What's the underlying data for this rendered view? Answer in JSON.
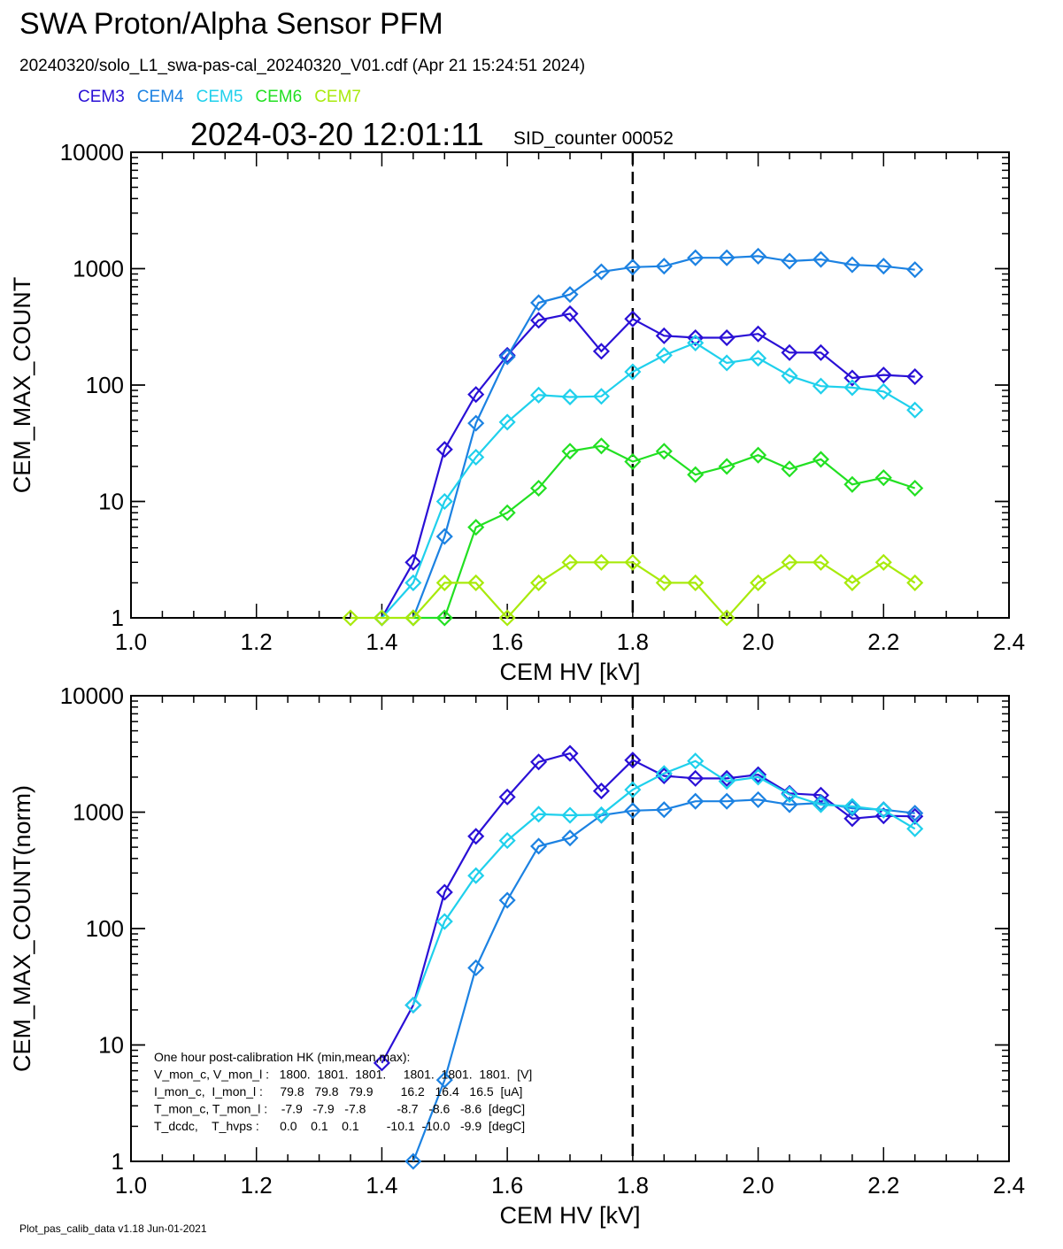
{
  "title": "SWA Proton/Alpha Sensor PFM",
  "subtitle": "20240320/solo_L1_swa-pas-cal_20240320_V01.cdf  (Apr 21 15:24:51 2024)",
  "timestamp": "2024-03-20 12:01:11",
  "sid_counter": "SID_counter 00052",
  "footer": "Plot_pas_calib_data v1.18 Jun-01-2021",
  "legend": [
    {
      "name": "CEM3",
      "color": "#2a10d6"
    },
    {
      "name": "CEM4",
      "color": "#1c82e2"
    },
    {
      "name": "CEM5",
      "color": "#1fd0ec"
    },
    {
      "name": "CEM6",
      "color": "#22e022"
    },
    {
      "name": "CEM7",
      "color": "#a8ea0c"
    }
  ],
  "hk_notes": [
    "One hour post-calibration HK (min,mean,max):",
    "V_mon_c, V_mon_l :   1800.  1801.  1801.     1801.  1801.  1801.  [V]",
    "I_mon_c,  I_mon_l :     79.8   79.8   79.9        16.2   16.4   16.5  [uA]",
    "T_mon_c, T_mon_l :    -7.9   -7.9   -7.8         -8.7   -8.6   -8.6  [degC]",
    "T_dcdc,    T_hvps :      0.0    0.1    0.1        -10.1  -10.0   -9.9  [degC]"
  ],
  "chart_data": [
    {
      "type": "line",
      "xlabel": "CEM HV [kV]",
      "ylabel": "CEM_MAX_COUNT",
      "xlim": [
        1.0,
        2.4
      ],
      "ylim": [
        1,
        10000
      ],
      "yscale": "log",
      "xticks": [
        "1.0",
        "1.2",
        "1.4",
        "1.6",
        "1.8",
        "2.0",
        "2.2",
        "2.4"
      ],
      "yticks": [
        "1",
        "10",
        "100",
        "1000",
        "10000"
      ],
      "vline_x": 1.8,
      "series": [
        {
          "name": "CEM3",
          "color": "#2a10d6",
          "x": [
            1.4,
            1.45,
            1.5,
            1.55,
            1.6,
            1.65,
            1.7,
            1.75,
            1.8,
            1.85,
            1.9,
            1.95,
            2.0,
            2.05,
            2.1,
            2.15,
            2.2,
            2.25
          ],
          "y": [
            1,
            3,
            28,
            83,
            180,
            360,
            410,
            195,
            370,
            265,
            255,
            255,
            275,
            190,
            190,
            115,
            122,
            118
          ]
        },
        {
          "name": "CEM4",
          "color": "#1c82e2",
          "x": [
            1.45,
            1.5,
            1.55,
            1.6,
            1.65,
            1.7,
            1.75,
            1.8,
            1.85,
            1.9,
            1.95,
            2.0,
            2.05,
            2.1,
            2.15,
            2.2,
            2.25
          ],
          "y": [
            1,
            5,
            47,
            175,
            510,
            600,
            940,
            1030,
            1050,
            1240,
            1240,
            1280,
            1160,
            1200,
            1080,
            1050,
            980
          ]
        },
        {
          "name": "CEM5",
          "color": "#1fd0ec",
          "x": [
            1.4,
            1.45,
            1.5,
            1.55,
            1.6,
            1.65,
            1.7,
            1.75,
            1.8,
            1.85,
            1.9,
            1.95,
            2.0,
            2.05,
            2.1,
            2.15,
            2.2,
            2.25
          ],
          "y": [
            1,
            2,
            10,
            24,
            48,
            82,
            79,
            80,
            130,
            180,
            230,
            155,
            170,
            120,
            98,
            95,
            88,
            61
          ]
        },
        {
          "name": "CEM6",
          "color": "#22e022",
          "x": [
            1.45,
            1.5,
            1.55,
            1.6,
            1.65,
            1.7,
            1.75,
            1.8,
            1.85,
            1.9,
            1.95,
            2.0,
            2.05,
            2.1,
            2.15,
            2.2,
            2.25
          ],
          "y": [
            1,
            1,
            6,
            8,
            13,
            27,
            30,
            22,
            27,
            17,
            20,
            25,
            19,
            23,
            14,
            16,
            13
          ]
        },
        {
          "name": "CEM7",
          "color": "#a8ea0c",
          "x": [
            1.35,
            1.4,
            1.45,
            1.5,
            1.55,
            1.6,
            1.65,
            1.7,
            1.75,
            1.8,
            1.85,
            1.9,
            1.95,
            2.0,
            2.05,
            2.1,
            2.15,
            2.2,
            2.25
          ],
          "y": [
            1,
            1,
            1,
            2,
            2,
            1,
            2,
            3,
            3,
            3,
            2,
            2,
            1,
            2,
            3,
            3,
            2,
            3,
            2
          ]
        }
      ]
    },
    {
      "type": "line",
      "xlabel": "CEM HV [kV]",
      "ylabel": "CEM_MAX_COUNT(norm)",
      "xlim": [
        1.0,
        2.4
      ],
      "ylim": [
        1,
        10000
      ],
      "yscale": "log",
      "xticks": [
        "1.0",
        "1.2",
        "1.4",
        "1.6",
        "1.8",
        "2.0",
        "2.2",
        "2.4"
      ],
      "yticks": [
        "1",
        "10",
        "100",
        "1000",
        "10000"
      ],
      "vline_x": 1.8,
      "series": [
        {
          "name": "CEM3",
          "color": "#2a10d6",
          "x": [
            1.4,
            1.45,
            1.5,
            1.55,
            1.6,
            1.65,
            1.7,
            1.75,
            1.8,
            1.85,
            1.9,
            1.95,
            2.0,
            2.05,
            2.1,
            2.15,
            2.2,
            2.25
          ],
          "y": [
            7,
            22,
            205,
            620,
            1350,
            2700,
            3200,
            1520,
            2800,
            2050,
            1950,
            1950,
            2100,
            1450,
            1400,
            880,
            930,
            920
          ]
        },
        {
          "name": "CEM4",
          "color": "#1c82e2",
          "x": [
            1.45,
            1.5,
            1.55,
            1.6,
            1.65,
            1.7,
            1.75,
            1.8,
            1.85,
            1.9,
            1.95,
            2.0,
            2.05,
            2.1,
            2.15,
            2.2,
            2.25
          ],
          "y": [
            1,
            5,
            46,
            175,
            510,
            600,
            940,
            1030,
            1050,
            1240,
            1240,
            1280,
            1160,
            1200,
            1080,
            1050,
            980
          ]
        },
        {
          "name": "CEM5",
          "color": "#1fd0ec",
          "x": [
            1.45,
            1.5,
            1.55,
            1.6,
            1.65,
            1.7,
            1.75,
            1.8,
            1.85,
            1.9,
            1.95,
            2.0,
            2.05,
            2.1,
            2.15,
            2.2,
            2.25
          ],
          "y": [
            22,
            115,
            285,
            570,
            960,
            940,
            950,
            1560,
            2150,
            2750,
            1840,
            2000,
            1420,
            1160,
            1120,
            1040,
            720
          ]
        }
      ]
    }
  ]
}
